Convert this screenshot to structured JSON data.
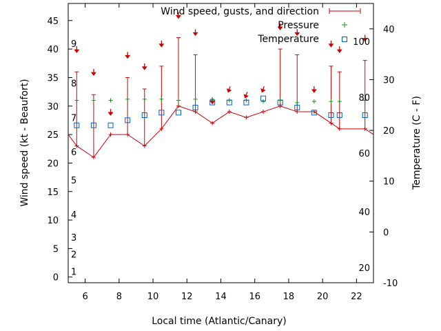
{
  "chart_data": {
    "type": "line",
    "xlabel": "Local time (Atlantic/Canary)",
    "ylabel": "Wind speed (kt - Beaufort)",
    "y2label": "Temperature (C - F)",
    "xlim": [
      5,
      23
    ],
    "ylim": [
      -1,
      48
    ],
    "y2lim": [
      -10,
      45
    ],
    "x_ticks": [
      6,
      8,
      10,
      12,
      14,
      16,
      18,
      20,
      22
    ],
    "y_ticks": [
      0,
      5,
      10,
      15,
      20,
      25,
      30,
      35,
      40,
      45
    ],
    "y2_ticks": [
      -10,
      0,
      10,
      20,
      30,
      40
    ],
    "beaufort_scale": [
      {
        "label": "1",
        "y": 1
      },
      {
        "label": "2",
        "y": 4
      },
      {
        "label": "3",
        "y": 7
      },
      {
        "label": "4",
        "y": 11
      },
      {
        "label": "5",
        "y": 17
      },
      {
        "label": "6",
        "y": 22
      },
      {
        "label": "7",
        "y": 28
      },
      {
        "label": "8",
        "y": 34
      },
      {
        "label": "9",
        "y": 41
      }
    ],
    "fahrenheit_scale": [
      {
        "label": "20",
        "y2": -7
      },
      {
        "label": "40",
        "y2": 4
      },
      {
        "label": "60",
        "y2": 15.5
      },
      {
        "label": "80",
        "y2": 26.5
      },
      {
        "label": "100",
        "y2": 37.5
      }
    ],
    "legend_position": "top-right",
    "series": [
      {
        "name": "Wind speed, gusts, and direction",
        "color": "#cc0000",
        "x": [
          4.5,
          5.5,
          6.5,
          7.5,
          8.5,
          9.5,
          10.5,
          11.5,
          12.5,
          13.5,
          14.5,
          15.5,
          16.5,
          17.5,
          18.5,
          19.5,
          20.5,
          21,
          22.5,
          23.5
        ],
        "speed": [
          25,
          23,
          21,
          25,
          25,
          23,
          26,
          30,
          29,
          27,
          29,
          28,
          29,
          30,
          29,
          29,
          27,
          26,
          26,
          25
        ],
        "gust": [
          null,
          36,
          32,
          null,
          35,
          33,
          37,
          42,
          39,
          null,
          null,
          null,
          null,
          40,
          39,
          null,
          37,
          36,
          38,
          null
        ],
        "direction_arrow_y": [
          null,
          40,
          36,
          29,
          39,
          37,
          41,
          46,
          43,
          31,
          33,
          32,
          33,
          44,
          43,
          33,
          41,
          40,
          42,
          null
        ],
        "direction_deg": [
          null,
          0,
          0,
          0,
          0,
          0,
          0,
          0,
          0,
          0,
          20,
          20,
          20,
          0,
          0,
          0,
          0,
          0,
          0,
          null
        ]
      },
      {
        "name": "Pressure",
        "color": "#00a000",
        "x": [
          5.5,
          6.5,
          7.5,
          8.5,
          9.5,
          10.5,
          11.5,
          12.5,
          13.5,
          14.5,
          15.5,
          16.5,
          17.5,
          18.5,
          19.5,
          20.5,
          21,
          22.5
        ],
        "y": [
          31,
          31,
          31,
          31.2,
          31.2,
          31.2,
          31,
          31.2,
          31.2,
          31,
          31,
          30.8,
          31,
          30.6,
          30.8,
          30.8,
          30.8,
          31
        ]
      },
      {
        "name": "Temperature",
        "color": "#0060c0",
        "x": [
          5.5,
          6.5,
          7.5,
          8.5,
          9.5,
          10.5,
          11.5,
          12.5,
          13.5,
          14.5,
          15.5,
          16.5,
          17.5,
          18.5,
          19.5,
          20.5,
          21,
          22.5
        ],
        "y2": [
          21,
          21,
          21,
          22,
          23,
          23.5,
          23.5,
          24.5,
          25.5,
          25.5,
          25.5,
          26.3,
          25.5,
          24.5,
          23.5,
          23,
          23,
          23
        ]
      }
    ]
  }
}
